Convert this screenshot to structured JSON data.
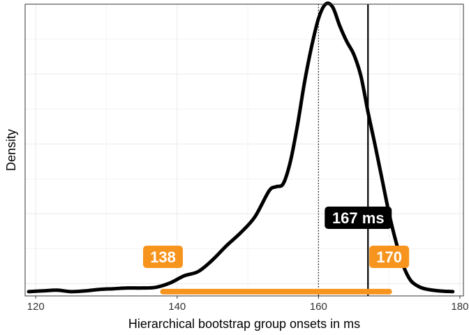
{
  "chart_data": {
    "type": "line",
    "title": "",
    "xlabel": "Hierarchical bootstrap group onsets in ms",
    "ylabel": "Density",
    "xlim": [
      118.5,
      180.5
    ],
    "ylim": [
      -0.003,
      0.2
    ],
    "x_ticks": [
      120,
      140,
      160,
      180
    ],
    "grid": true,
    "series": [
      {
        "color": "#000000",
        "x": [
          119,
          121,
          123,
          125,
          127,
          129,
          131,
          133,
          135,
          137,
          139,
          141,
          143,
          145,
          147,
          149,
          151,
          153,
          154,
          155,
          156,
          157,
          158,
          159,
          160,
          161,
          162,
          163,
          164,
          165,
          166,
          167,
          168,
          169,
          170,
          171,
          172,
          173,
          174,
          175,
          177,
          179
        ],
        "y": [
          0.0,
          0.0005,
          0.001,
          0.0,
          0.0005,
          0.0015,
          0.002,
          0.0025,
          0.0025,
          0.003,
          0.006,
          0.011,
          0.014,
          0.022,
          0.032,
          0.041,
          0.052,
          0.07,
          0.073,
          0.075,
          0.09,
          0.115,
          0.145,
          0.17,
          0.19,
          0.2,
          0.198,
          0.185,
          0.174,
          0.165,
          0.15,
          0.125,
          0.102,
          0.078,
          0.054,
          0.034,
          0.018,
          0.008,
          0.004,
          0.002,
          0.0005,
          0.0
        ]
      }
    ],
    "vertical_lines": [
      {
        "x": 167,
        "style": "solid",
        "color": "#000000"
      },
      {
        "x": 160,
        "style": "dotted",
        "color": "#000000"
      }
    ],
    "interval": {
      "from": 138,
      "to": 170,
      "color": "#F7941D"
    },
    "labels": [
      {
        "text": "138",
        "x": 138,
        "color": "#F7941D"
      },
      {
        "text": "170",
        "x": 170,
        "color": "#F7941D"
      },
      {
        "text": "167 ms",
        "x": 167,
        "color": "#000000"
      }
    ]
  }
}
